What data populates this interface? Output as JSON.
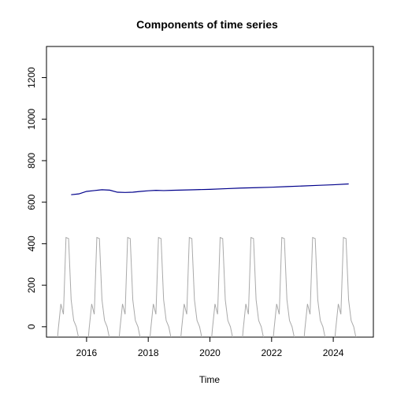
{
  "chart_data": {
    "type": "line",
    "title": "Components of time series",
    "xlabel": "Time",
    "ylabel": "",
    "xlim": [
      2014.7,
      2025.3
    ],
    "ylim": [
      -50,
      1350
    ],
    "x_ticks": [
      2016,
      2018,
      2020,
      2022,
      2024
    ],
    "y_ticks": [
      0,
      200,
      400,
      600,
      800,
      1000,
      1200
    ],
    "grid": false,
    "series": [
      {
        "color": "#00008B",
        "x": [
          2015.5,
          2015.75,
          2016.0,
          2016.25,
          2016.5,
          2016.75,
          2017.0,
          2017.25,
          2017.5,
          2017.75,
          2018.0,
          2018.25,
          2018.5,
          2018.75,
          2019.0,
          2019.5,
          2020.0,
          2020.5,
          2021.0,
          2021.5,
          2022.0,
          2022.5,
          2023.0,
          2023.5,
          2024.0,
          2024.5
        ],
        "values": [
          636,
          640,
          652,
          656,
          660,
          658,
          648,
          647,
          648,
          652,
          655,
          657,
          656,
          657,
          658,
          660,
          662,
          665,
          668,
          670,
          672,
          675,
          678,
          681,
          684,
          688
        ]
      },
      {
        "color": "#A9A9A9",
        "period_values": [
          -150,
          -10,
          110,
          60,
          430,
          425,
          130,
          30,
          0,
          -60,
          -120,
          -180
        ],
        "x_start": 2015.0,
        "x_end": 2025.0,
        "step": 0.0833
      }
    ]
  }
}
